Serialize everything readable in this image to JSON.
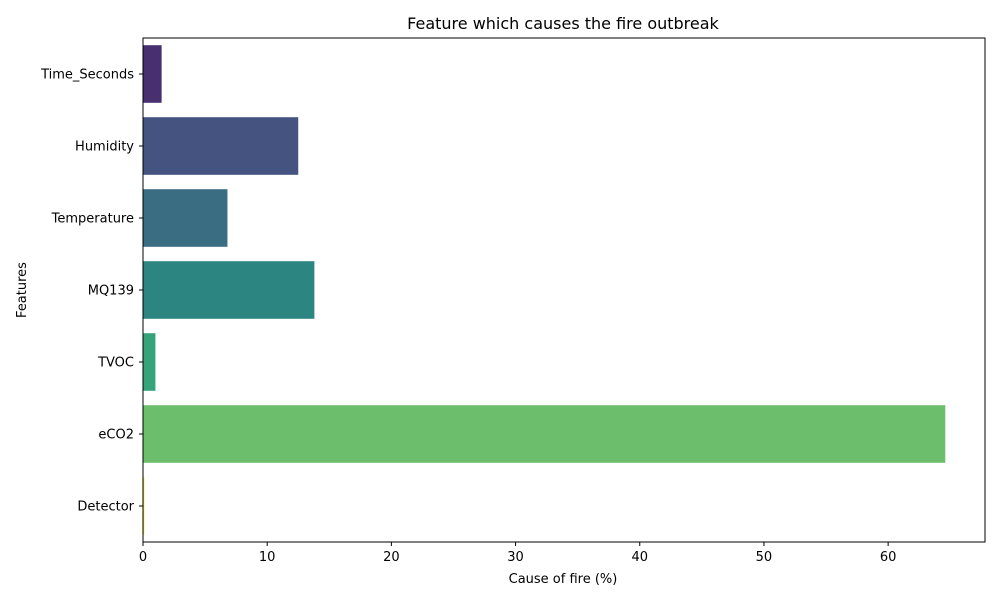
{
  "chart_data": {
    "type": "bar",
    "orientation": "horizontal",
    "title": "Feature which causes the fire outbreak",
    "xlabel": "Cause of fire (%)",
    "ylabel": "Features",
    "categories": [
      "Time_Seconds",
      "Humidity",
      "Temperature",
      "MQ139",
      "TVOC",
      "eCO2",
      "Detector"
    ],
    "values": [
      1.5,
      12.5,
      6.8,
      13.8,
      1.0,
      64.6,
      0.1
    ],
    "colors": [
      "#482f70",
      "#44537f",
      "#3a6d81",
      "#2c8580",
      "#35a47b",
      "#6cbd6c",
      "#f5e61c"
    ],
    "xlim": [
      0,
      67.8
    ],
    "xticks": [
      0,
      10,
      20,
      30,
      40,
      50,
      60
    ],
    "grid": false,
    "legend": "none"
  }
}
